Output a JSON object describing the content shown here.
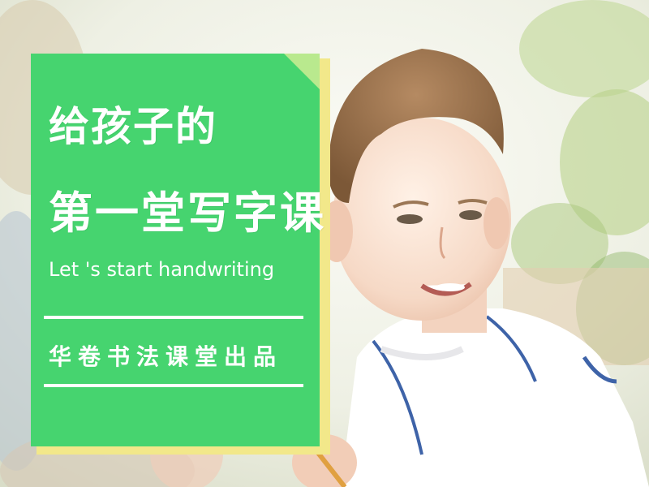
{
  "card": {
    "title_line1": "给孩子的",
    "title_line2": "第一堂写字课",
    "subtitle": "Let 's start handwriting",
    "brand": "华卷书法课堂出品"
  },
  "colors": {
    "card_green": "#46d46f",
    "card_shadow": "#f2e88a",
    "text": "#ffffff"
  },
  "photo": {
    "subject": "smiling boy writing at a table in a white polo shirt"
  }
}
